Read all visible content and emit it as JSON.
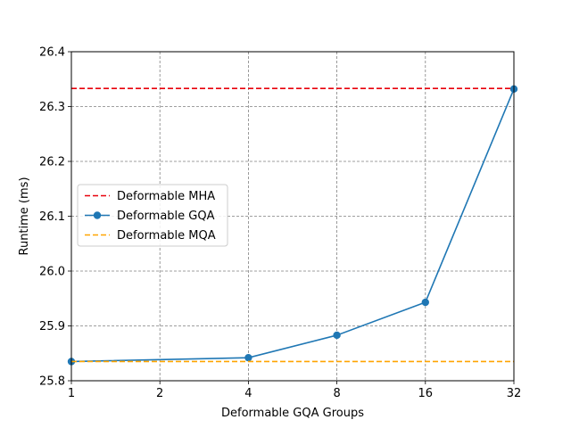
{
  "chart_data": {
    "type": "line",
    "title": "",
    "xlabel": "Deformable GQA Groups",
    "ylabel": "Runtime (ms)",
    "x_scale": "log2",
    "x": [
      1,
      2,
      4,
      8,
      16,
      32
    ],
    "x_tick_labels": [
      "1",
      "2",
      "4",
      "8",
      "16",
      "32"
    ],
    "ylim": [
      25.8,
      26.4
    ],
    "y_ticks": [
      "25.8",
      "25.9",
      "26.0",
      "26.1",
      "26.2",
      "26.3",
      "26.4"
    ],
    "grid": true,
    "legend_position": "center-left",
    "series": [
      {
        "name": "Deformable MHA",
        "style": "dashed",
        "color": "#e8000b",
        "x": [
          1,
          32
        ],
        "values": [
          26.333,
          26.333
        ]
      },
      {
        "name": "Deformable GQA",
        "style": "solid-marker",
        "color": "#1f77b4",
        "x": [
          1,
          4,
          8,
          16,
          32
        ],
        "values": [
          25.835,
          25.842,
          25.883,
          25.943,
          26.332
        ]
      },
      {
        "name": "Deformable MQA",
        "style": "dashed",
        "color": "#ffa500",
        "x": [
          1,
          32
        ],
        "values": [
          25.835,
          25.835
        ]
      }
    ]
  }
}
